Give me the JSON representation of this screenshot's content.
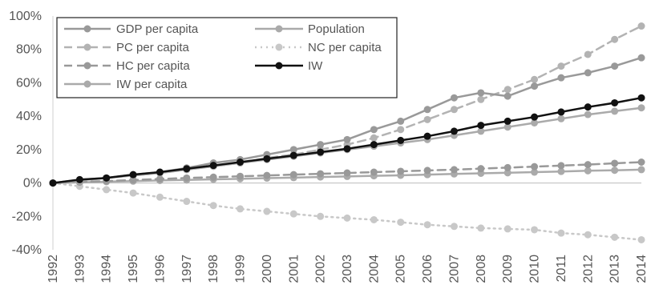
{
  "chart_data": {
    "type": "line",
    "title": "",
    "xlabel": "",
    "ylabel": "",
    "y_unit": "%",
    "ylim": [
      -40,
      100
    ],
    "yticks": [
      -40,
      -20,
      0,
      20,
      40,
      60,
      80,
      100
    ],
    "ytick_labels": [
      "-40%",
      "-20%",
      "0%",
      "20%",
      "40%",
      "60%",
      "80%",
      "100%"
    ],
    "x": [
      "1992",
      "1993",
      "1994",
      "1995",
      "1996",
      "1997",
      "1998",
      "1999",
      "2000",
      "2001",
      "2002",
      "2003",
      "2004",
      "2005",
      "2006",
      "2007",
      "2008",
      "2009",
      "2010",
      "2011",
      "2012",
      "2013",
      "2014"
    ],
    "grid": false,
    "legend_position": "top-left",
    "series": [
      {
        "name": "GDP per capita",
        "color": "#999999",
        "style": "solid",
        "marker": "circle",
        "values": [
          0,
          2,
          3,
          5,
          6.5,
          9,
          12,
          14,
          17,
          20,
          23,
          26,
          32,
          37,
          44,
          51,
          54,
          52,
          58,
          63,
          66,
          70,
          75
        ]
      },
      {
        "name": "Population",
        "color": "#aaaaaa",
        "style": "solid",
        "marker": "circle",
        "values": [
          0,
          0.4,
          0.8,
          1.1,
          1.5,
          1.8,
          2.2,
          2.5,
          2.9,
          3.2,
          3.6,
          3.9,
          4.3,
          4.6,
          5,
          5.4,
          5.8,
          6.1,
          6.5,
          6.9,
          7.3,
          7.6,
          8
        ]
      },
      {
        "name": "PC per capita",
        "color": "#b3b3b3",
        "style": "dashed",
        "marker": "circle",
        "values": [
          0,
          1.5,
          3,
          4.5,
          6,
          8,
          10,
          12,
          15,
          17,
          20,
          23,
          27,
          32,
          38,
          44,
          50,
          56,
          62,
          70,
          77,
          86,
          94
        ]
      },
      {
        "name": "NC per capita",
        "color": "#c8c8c8",
        "style": "dotted",
        "marker": "circle",
        "values": [
          0,
          -2,
          -4,
          -6,
          -8.5,
          -11,
          -13.5,
          -15.5,
          -17,
          -18.5,
          -20,
          -21,
          -22,
          -23.5,
          -25,
          -26,
          -27,
          -27.5,
          -28,
          -30,
          -31,
          -32.5,
          -34
        ]
      },
      {
        "name": "HC per capita",
        "color": "#999999",
        "style": "dashed",
        "marker": "circle",
        "values": [
          0,
          0.6,
          1.2,
          1.8,
          2.4,
          3,
          3.5,
          4,
          4.5,
          5,
          5.5,
          6,
          6.5,
          7,
          7.5,
          8,
          8.6,
          9.2,
          9.8,
          10.4,
          11,
          11.8,
          12.5
        ]
      },
      {
        "name": "IW",
        "color": "#111111",
        "style": "solid",
        "marker": "circle",
        "values": [
          0,
          2,
          3,
          5,
          6.5,
          8.5,
          10.5,
          12.5,
          14.5,
          16.5,
          18.5,
          20.5,
          23,
          25.5,
          28,
          31,
          34.5,
          37,
          39.5,
          42.5,
          45.5,
          48,
          51
        ]
      },
      {
        "name": "IW per capita",
        "color": "#aaaaaa",
        "style": "solid",
        "marker": "circle",
        "values": [
          0,
          1.5,
          3,
          4.5,
          6,
          8,
          10,
          12,
          14,
          16,
          18,
          20,
          22,
          24,
          26,
          28.5,
          31,
          33.5,
          36,
          38.5,
          41,
          43,
          45
        ]
      }
    ]
  }
}
